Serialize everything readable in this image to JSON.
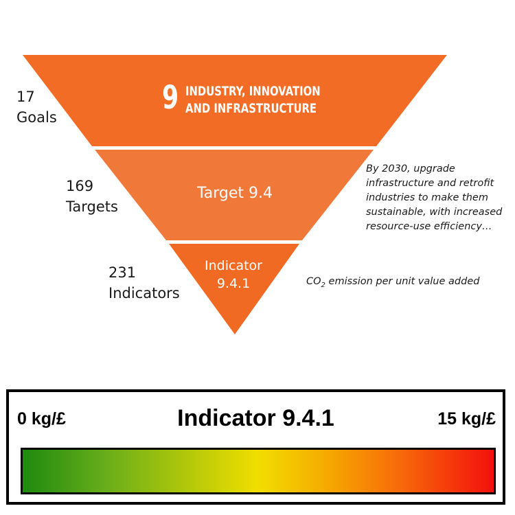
{
  "pyramid": {
    "levels": [
      {
        "count_label": "17",
        "unit_label": "Goals",
        "color": "#F36C25"
      },
      {
        "count_label": "169",
        "unit_label": "Targets",
        "color": "#F0793A"
      },
      {
        "count_label": "231",
        "unit_label": "Indicators",
        "color": "#F16A24"
      }
    ],
    "goal": {
      "number": "9",
      "title_line1": "INDUSTRY, INNOVATION",
      "title_line2": "AND INFRASTRUCTURE"
    },
    "target_label": "Target 9.4",
    "indicator_label_line1": "Indicator",
    "indicator_label_line2": "9.4.1",
    "target_note_lines": [
      "By 2030, upgrade",
      "infrastructure and retrofit",
      "industries to make them",
      "sustainable, with increased",
      "resource-use efficiency…"
    ],
    "indicator_note": {
      "prefix": "CO",
      "subscript": "2",
      "suffix": " emission per unit value added"
    }
  },
  "scale": {
    "title": "Indicator 9.4.1",
    "min_label": "0 kg/£",
    "max_label": "15 kg/£",
    "gradient_colors": [
      "#1e8a10",
      "#f1de00",
      "#f4100c"
    ]
  }
}
